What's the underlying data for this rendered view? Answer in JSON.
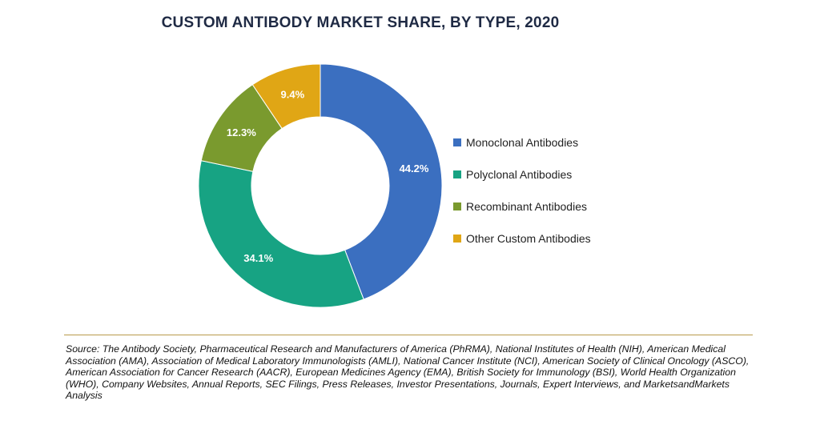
{
  "chart_data": {
    "type": "pie",
    "variant": "donut",
    "title": "CUSTOM ANTIBODY MARKET SHARE, BY TYPE, 2020",
    "slices": [
      {
        "label": "Monoclonal Antibodies",
        "value": 44.2,
        "display": "44.2%",
        "color": "#3b6fc0"
      },
      {
        "label": "Polyclonal Antibodies",
        "value": 34.1,
        "display": "34.1%",
        "color": "#17a383"
      },
      {
        "label": "Recombinant Antibodies",
        "value": 12.3,
        "display": "12.3%",
        "color": "#7a9a2e"
      },
      {
        "label": "Other Custom Antibodies",
        "value": 9.4,
        "display": "9.4%",
        "color": "#e0a615"
      }
    ],
    "legend_position": "right"
  },
  "footer": {
    "source_text": "Source: The Antibody Society, Pharmaceutical Research and Manufacturers of America (PhRMA), National Institutes of Health (NIH), American Medical Association (AMA), Association of Medical Laboratory Immunologists (AMLI), National Cancer Institute (NCI), American Society of Clinical Oncology (ASCO), American Association for Cancer Research (AACR), European Medicines Agency (EMA), British Society for Immunology (BSI), World Health Organization (WHO), Company Websites, Annual Reports, SEC Filings, Press Releases, Investor Presentations, Journals, Expert Interviews, and MarketsandMarkets Analysis"
  }
}
